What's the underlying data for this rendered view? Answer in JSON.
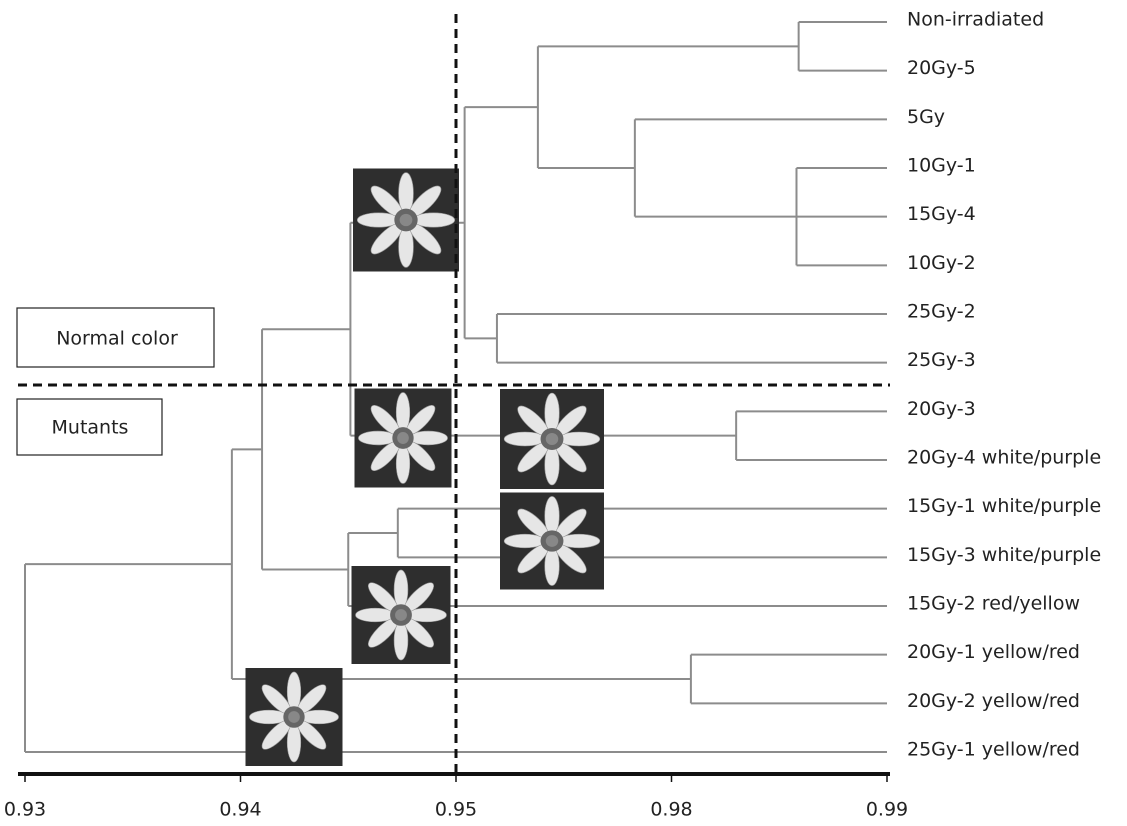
{
  "chart_data": {
    "type": "dendrogram",
    "leaves": [
      "Non-irradiated",
      "20Gy-5",
      "5Gy",
      "10Gy-1",
      "15Gy-4",
      "10Gy-2",
      "25Gy-2",
      "25Gy-3",
      "20Gy-3",
      "20Gy-4 white/purple",
      "15Gy-1 white/purple",
      "15Gy-3 white/purple",
      "15Gy-2 red/yellow",
      "20Gy-1 yellow/red",
      "20Gy-2 yellow/red",
      "25Gy-1 yellow/red"
    ],
    "nodes": [
      {
        "children": [
          0,
          1
        ],
        "height": 0.9859
      },
      {
        "children": [
          3,
          4,
          5
        ],
        "height": 0.9858
      },
      {
        "children": [
          2,
          17
        ],
        "height": 0.9749
      },
      {
        "children": [
          16,
          18
        ],
        "height": 0.9614
      },
      {
        "children": [
          6,
          7
        ],
        "height": 0.9557
      },
      {
        "children": [
          19,
          20
        ],
        "height": 0.9512
      },
      {
        "children": [
          8,
          9
        ],
        "height": 0.983
      },
      {
        "children": [
          21,
          22
        ],
        "height": 0.9451
      },
      {
        "children": [
          10,
          11
        ],
        "height": 0.9473
      },
      {
        "children": [
          24,
          12
        ],
        "height": 0.945
      },
      {
        "children": [
          23,
          25
        ],
        "height": 0.941
      },
      {
        "children": [
          13,
          14
        ],
        "height": 0.9809
      },
      {
        "children": [
          26,
          27
        ],
        "height": 0.9396
      },
      {
        "children": [
          28,
          15
        ],
        "height": 0.93
      }
    ],
    "xlim": [
      0.93,
      0.99
    ],
    "xticks": [
      0.93,
      0.94,
      0.95,
      0.98,
      0.99
    ],
    "threshold": 0.95,
    "annotations": [
      "Normal color",
      "Mutants"
    ],
    "color": "#8c8c8c"
  }
}
